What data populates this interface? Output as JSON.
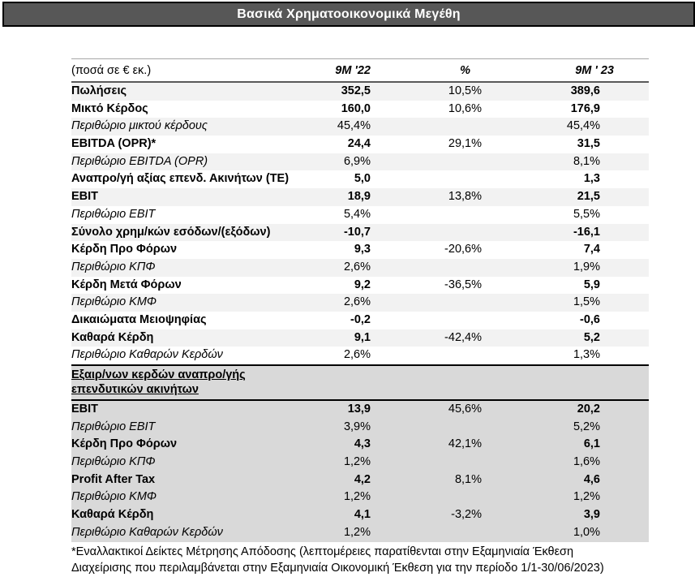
{
  "title_bar": {
    "title": "Βασικά Χρηματοοικονομικά Μεγέθη"
  },
  "colors": {
    "title_bar_bg": "#575757",
    "title_text": "#ffffff",
    "stripe_row_bg": "#f2f2f2",
    "excluded_section_bg": "#d9d9d9",
    "border_dark": "#000000"
  },
  "table": {
    "unit_label": "(ποσά σε € εκ.)",
    "col_headers": {
      "c1": "9M '22",
      "c2": "%",
      "c3": "9M ' 23"
    },
    "main_rows": [
      {
        "label": "Πωλήσεις",
        "style": "bold",
        "v_9m22": "352,5",
        "pct": "10,5%",
        "v_9m23": "389,6"
      },
      {
        "label": "Μικτό Κέρδος",
        "style": "bold",
        "v_9m22": "160,0",
        "pct": "10,6%",
        "v_9m23": "176,9"
      },
      {
        "label": "Περιθώριο μικτού κέρδους",
        "style": "italic",
        "v_9m22": "45,4%",
        "pct": "",
        "v_9m23": "45,4%"
      },
      {
        "label": "EBITDA (OPR)*",
        "style": "bold",
        "v_9m22": "24,4",
        "pct": "29,1%",
        "v_9m23": "31,5"
      },
      {
        "label": "Περιθώριο EBITDA (OPR)",
        "style": "italic",
        "v_9m22": "6,9%",
        "pct": "",
        "v_9m23": "8,1%"
      },
      {
        "label": "Αναπρο/γή αξίας επενδ. Ακινήτων (ΤΕ)",
        "style": "bold",
        "v_9m22": "5,0",
        "pct": "",
        "v_9m23": "1,3"
      },
      {
        "label": "EBIT",
        "style": "bold",
        "v_9m22": "18,9",
        "pct": "13,8%",
        "v_9m23": "21,5"
      },
      {
        "label": "Περιθώριο EBIT",
        "style": "italic",
        "v_9m22": "5,4%",
        "pct": "",
        "v_9m23": "5,5%"
      },
      {
        "label": "Σύνολο χρημ/κών εσόδων/(εξόδων)",
        "style": "bold",
        "v_9m22": "-10,7",
        "pct": "",
        "v_9m23": "-16,1"
      },
      {
        "label": "Κέρδη Προ Φόρων",
        "style": "bold",
        "v_9m22": "9,3",
        "pct": "-20,6%",
        "v_9m23": "7,4"
      },
      {
        "label": "Περιθώριο ΚΠΦ",
        "style": "italic",
        "v_9m22": "2,6%",
        "pct": "",
        "v_9m23": "1,9%"
      },
      {
        "label": "Κέρδη Μετά Φόρων",
        "style": "bold",
        "v_9m22": "9,2",
        "pct": "-36,5%",
        "v_9m23": "5,9"
      },
      {
        "label": "Περιθώριο ΚΜΦ",
        "style": "italic",
        "v_9m22": "2,6%",
        "pct": "",
        "v_9m23": "1,5%"
      },
      {
        "label": "Δικαιώματα Μειοψηφίας",
        "style": "bold",
        "v_9m22": "-0,2",
        "pct": "",
        "v_9m23": "-0,6"
      },
      {
        "label": "Καθαρά Κέρδη",
        "style": "bold",
        "v_9m22": "9,1",
        "pct": "-42,4%",
        "v_9m23": "5,2"
      },
      {
        "label": "Περιθώριο Καθαρών Κερδών",
        "style": "italic",
        "v_9m22": "2,6%",
        "pct": "",
        "v_9m23": "1,3%"
      }
    ],
    "excl_section": {
      "heading_line1": "Εξαιρ/νων κερδών αναπρο/γής",
      "heading_line2": "επενδυτικών ακινήτων",
      "rows": [
        {
          "label": "EBIT",
          "style": "bold",
          "v_9m22": "13,9",
          "pct": "45,6%",
          "v_9m23": "20,2"
        },
        {
          "label": "Περιθώριο EBIT",
          "style": "italic",
          "v_9m22": "3,9%",
          "pct": "",
          "v_9m23": "5,2%"
        },
        {
          "label": "Κέρδη Προ Φόρων",
          "style": "bold",
          "v_9m22": "4,3",
          "pct": "42,1%",
          "v_9m23": "6,1"
        },
        {
          "label": "Περιθώριο ΚΠΦ",
          "style": "italic",
          "v_9m22": "1,2%",
          "pct": "",
          "v_9m23": "1,6%"
        },
        {
          "label": "Profit After Tax",
          "style": "bold",
          "v_9m22": "4,2",
          "pct": "8,1%",
          "v_9m23": "4,6"
        },
        {
          "label": "Περιθώριο ΚΜΦ",
          "style": "italic",
          "v_9m22": "1,2%",
          "pct": "",
          "v_9m23": "1,2%"
        },
        {
          "label": "Καθαρά Κέρδη",
          "style": "bold",
          "v_9m22": "4,1",
          "pct": "-3,2%",
          "v_9m23": "3,9"
        },
        {
          "label": "Περιθώριο Καθαρών Κερδών",
          "style": "italic",
          "v_9m22": "1,2%",
          "pct": "",
          "v_9m23": "1,0%"
        }
      ]
    },
    "footnote": {
      "line1": "*Εναλλακτικοί Δείκτες Μέτρησης Απόδοσης (λεπτομέρειες παρατίθενται στην Εξαμηνιαία Έκθεση",
      "line2": "Διαχείρισης που περιλαμβάνεται στην Εξαμηνιαία Οικονομική Έκθεση για την περίοδο 1/1-30/06/2023)"
    }
  }
}
